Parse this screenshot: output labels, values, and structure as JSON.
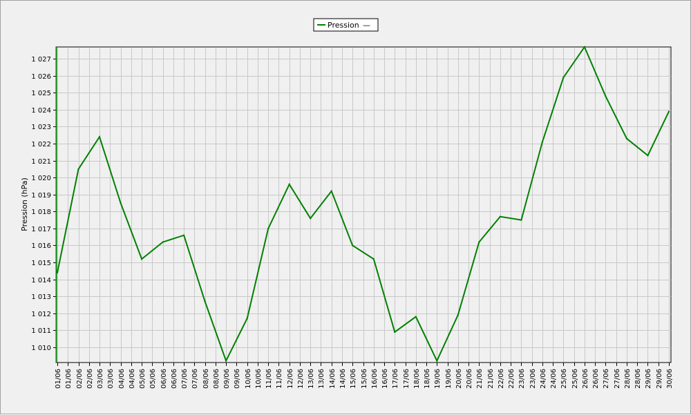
{
  "chart_data": {
    "type": "line",
    "ylabel": "Pression (hPa)",
    "legend": {
      "placement": "top-center",
      "label": "Pression",
      "suffix": "—"
    },
    "ylim": [
      1009.1,
      1027.7
    ],
    "yticks": [
      1010,
      1011,
      1012,
      1013,
      1014,
      1015,
      1016,
      1017,
      1018,
      1019,
      1020,
      1021,
      1022,
      1023,
      1024,
      1025,
      1026,
      1027
    ],
    "ytick_labels": [
      "1 010",
      "1 011",
      "1 012",
      "1 013",
      "1 014",
      "1 015",
      "1 016",
      "1 017",
      "1 018",
      "1 019",
      "1 020",
      "1 021",
      "1 022",
      "1 023",
      "1 024",
      "1 025",
      "1 026",
      "1 027"
    ],
    "xtick_labels": [
      "01/06",
      "01/06",
      "02/06",
      "02/06",
      "03/06",
      "03/06",
      "04/06",
      "04/06",
      "05/06",
      "05/06",
      "06/06",
      "06/06",
      "07/06",
      "07/06",
      "08/06",
      "08/06",
      "09/06",
      "09/06",
      "10/06",
      "10/06",
      "11/06",
      "11/06",
      "12/06",
      "12/06",
      "13/06",
      "13/06",
      "14/06",
      "14/06",
      "15/06",
      "15/06",
      "16/06",
      "16/06",
      "17/06",
      "17/06",
      "18/06",
      "18/06",
      "19/06",
      "19/06",
      "20/06",
      "20/06",
      "21/06",
      "21/06",
      "22/06",
      "22/06",
      "23/06",
      "23/06",
      "24/06",
      "24/06",
      "25/06",
      "25/06",
      "26/06",
      "26/06",
      "27/06",
      "27/06",
      "28/06",
      "28/06",
      "29/06",
      "29/06",
      "30/06"
    ],
    "grid": true,
    "series": [
      {
        "name": "Pression",
        "color": "#008000",
        "x_index": [
          0,
          2,
          4,
          6,
          8,
          10,
          12,
          14,
          16,
          18,
          20,
          22,
          24,
          26,
          28,
          30,
          32,
          34,
          36,
          38,
          40,
          42,
          44,
          46,
          48,
          50,
          52,
          54,
          56,
          58
        ],
        "values": [
          1014.4,
          1020.5,
          1022.4,
          1018.5,
          1015.2,
          1016.2,
          1016.6,
          1012.7,
          1009.2,
          1011.7,
          1017.0,
          1019.6,
          1017.6,
          1019.2,
          1016.0,
          1015.2,
          1010.9,
          1011.8,
          1009.2,
          1011.9,
          1016.2,
          1017.7,
          1017.5,
          1022.1,
          1025.9,
          1027.7,
          1024.8,
          1022.3,
          1021.3,
          1023.9
        ]
      }
    ]
  }
}
